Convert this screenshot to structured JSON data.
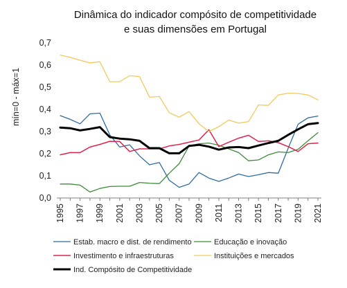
{
  "chart_data": {
    "type": "line",
    "title_lines": [
      "Dinâmica do indicador compósito de competitividade",
      "e suas dimensões em Portugal"
    ],
    "ylabel": "mín=0 - máx=1",
    "xlabel": "",
    "ylim": [
      0,
      0.7
    ],
    "yticks": [
      "0,0",
      "0,1",
      "0,2",
      "0,3",
      "0,4",
      "0,5",
      "0,6",
      "0,7"
    ],
    "x": [
      1995,
      1996,
      1997,
      1998,
      1999,
      2000,
      2001,
      2002,
      2003,
      2004,
      2005,
      2006,
      2007,
      2008,
      2009,
      2010,
      2011,
      2012,
      2013,
      2014,
      2015,
      2016,
      2017,
      2018,
      2019,
      2020,
      2021
    ],
    "xtick_labels": [
      "1995",
      "1997",
      "1999",
      "2001",
      "2003",
      "2005",
      "2007",
      "2009",
      "2011",
      "2013",
      "2015",
      "2017",
      "2019",
      "2021"
    ],
    "grid": false,
    "legend_position": "bottom",
    "series": [
      {
        "name": "Estab. macro e dist. de rendimento",
        "color": "#2e6ca4",
        "width": 1.3,
        "values": [
          0.372,
          0.355,
          0.335,
          0.38,
          0.383,
          0.285,
          0.23,
          0.24,
          0.19,
          0.15,
          0.16,
          0.08,
          0.048,
          0.063,
          0.115,
          0.09,
          0.075,
          0.09,
          0.108,
          0.097,
          0.105,
          0.115,
          0.112,
          0.225,
          0.333,
          0.362,
          0.37
        ]
      },
      {
        "name": "Educação e inovação",
        "color": "#3d8b37",
        "width": 1.3,
        "values": [
          0.063,
          0.063,
          0.058,
          0.027,
          0.043,
          0.052,
          0.053,
          0.053,
          0.07,
          0.067,
          0.065,
          0.112,
          0.155,
          0.235,
          0.245,
          0.248,
          0.238,
          0.222,
          0.205,
          0.168,
          0.172,
          0.195,
          0.208,
          0.205,
          0.22,
          0.258,
          0.295
        ]
      },
      {
        "name": "Investimento e infraestruturas",
        "color": "#e0234a",
        "width": 1.5,
        "values": [
          0.195,
          0.205,
          0.205,
          0.23,
          0.242,
          0.256,
          0.255,
          0.21,
          0.222,
          0.222,
          0.222,
          0.235,
          0.242,
          0.252,
          0.262,
          0.308,
          0.232,
          0.252,
          0.27,
          0.283,
          0.255,
          0.258,
          0.25,
          0.232,
          0.21,
          0.245,
          0.248
        ]
      },
      {
        "name": "Instituições e mercados",
        "color": "#f2ca5b",
        "width": 1.3,
        "values": [
          0.645,
          0.635,
          0.622,
          0.61,
          0.615,
          0.525,
          0.525,
          0.552,
          0.548,
          0.455,
          0.458,
          0.385,
          0.365,
          0.39,
          0.335,
          0.3,
          0.322,
          0.352,
          0.338,
          0.345,
          0.42,
          0.418,
          0.465,
          0.473,
          0.472,
          0.465,
          0.443
        ]
      },
      {
        "name": "Ind. Compósito de Competitividade",
        "color": "#000000",
        "width": 3,
        "values": [
          0.318,
          0.315,
          0.305,
          0.312,
          0.32,
          0.275,
          0.268,
          0.265,
          0.258,
          0.225,
          0.225,
          0.202,
          0.202,
          0.235,
          0.24,
          0.232,
          0.218,
          0.228,
          0.23,
          0.225,
          0.237,
          0.248,
          0.258,
          0.285,
          0.31,
          0.333,
          0.338
        ]
      }
    ]
  }
}
